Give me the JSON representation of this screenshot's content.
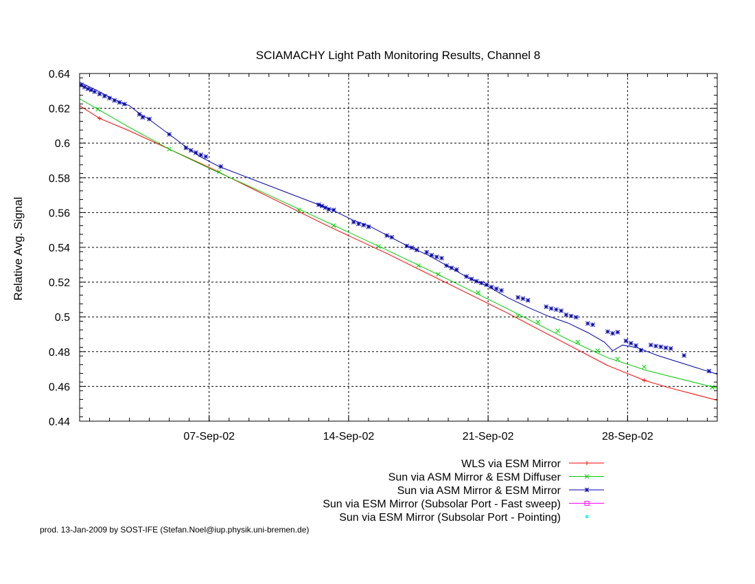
{
  "chart_data": {
    "type": "line",
    "title": "SCIAMACHY Light Path Monitoring Results, Channel 8",
    "xlabel": "",
    "ylabel": "Relative Avg. Signal",
    "x_range": [
      "2002-08-31T12:00",
      "2002-10-02T12:00"
    ],
    "ylim": [
      0.44,
      0.64
    ],
    "yticks": [
      0.44,
      0.46,
      0.48,
      0.5,
      0.52,
      0.54,
      0.56,
      0.58,
      0.6,
      0.62,
      0.64
    ],
    "ytick_labels": [
      "0.44",
      "0.46",
      "0.48",
      "0.5",
      "0.52",
      "0.54",
      "0.56",
      "0.58",
      "0.6",
      "0.62",
      "0.64"
    ],
    "xticks": [
      "2002-09-07",
      "2002-09-14",
      "2002-09-21",
      "2002-09-28"
    ],
    "xtick_labels": [
      "07-Sep-02",
      "14-Sep-02",
      "21-Sep-02",
      "28-Sep-02"
    ],
    "grid": true,
    "legend_position": "below plot, right-aligned labels",
    "series": [
      {
        "name": "WLS via ESM Mirror",
        "color": "#ff0000",
        "marker": "plus",
        "points": [
          [
            "2002-08-31T12:00",
            0.6215
          ],
          [
            "2002-09-01T12:00",
            0.6142
          ],
          [
            "2002-09-03T00:00",
            0.607
          ],
          [
            "2002-09-05T00:00",
            0.5965
          ],
          [
            "2002-09-07T00:00",
            0.586
          ],
          [
            "2002-09-10T00:00",
            0.569
          ],
          [
            "2002-09-13T00:00",
            0.552
          ],
          [
            "2002-09-16T00:00",
            0.536
          ],
          [
            "2002-09-19T00:00",
            0.519
          ],
          [
            "2002-09-22T00:00",
            0.502
          ],
          [
            "2002-09-25T00:00",
            0.484
          ],
          [
            "2002-09-27T00:00",
            0.472
          ],
          [
            "2002-09-28T20:00",
            0.4635
          ],
          [
            "2002-09-30T00:00",
            0.4595
          ],
          [
            "2002-10-02T12:00",
            0.452
          ]
        ],
        "marker_points": [
          [
            "2002-09-01T12:00",
            0.6142
          ],
          [
            "2002-09-28T20:00",
            0.4635
          ]
        ]
      },
      {
        "name": "Sun via ASM Mirror & ESM Diffuser",
        "color": "#00cc00",
        "marker": "cross",
        "points": [
          [
            "2002-08-31T12:00",
            0.6255
          ],
          [
            "2002-09-03T00:00",
            0.609
          ],
          [
            "2002-09-05T00:00",
            0.5965
          ],
          [
            "2002-09-07T00:00",
            0.5855
          ],
          [
            "2002-09-10T00:00",
            0.57
          ],
          [
            "2002-09-13T00:00",
            0.554
          ],
          [
            "2002-09-16T00:00",
            0.538
          ],
          [
            "2002-09-19T00:00",
            0.5215
          ],
          [
            "2002-09-22T00:00",
            0.5045
          ],
          [
            "2002-09-25T00:00",
            0.487
          ],
          [
            "2002-09-27T00:00",
            0.4765
          ],
          [
            "2002-09-29T00:00",
            0.469
          ],
          [
            "2002-10-02T12:00",
            0.459
          ]
        ],
        "marker_points": [
          [
            "2002-09-01T10:00",
            0.6195
          ],
          [
            "2002-09-05T00:00",
            0.5965
          ],
          [
            "2002-09-07T12:00",
            0.5835
          ],
          [
            "2002-09-11T12:00",
            0.5615
          ],
          [
            "2002-09-13T06:00",
            0.5525
          ],
          [
            "2002-09-15T12:00",
            0.5405
          ],
          [
            "2002-09-17T12:00",
            0.5295
          ],
          [
            "2002-09-18T12:00",
            0.5245
          ],
          [
            "2002-09-20T12:00",
            0.514
          ],
          [
            "2002-09-22T12:00",
            0.5005
          ],
          [
            "2002-09-23T12:00",
            0.497
          ],
          [
            "2002-09-24T12:00",
            0.492
          ],
          [
            "2002-09-25T12:00",
            0.4855
          ],
          [
            "2002-09-26T12:00",
            0.4805
          ],
          [
            "2002-09-27T12:00",
            0.4757
          ],
          [
            "2002-09-28T20:00",
            0.4712
          ],
          [
            "2002-10-02T06:00",
            0.4595
          ]
        ]
      },
      {
        "name": "Sun via ASM Mirror & ESM Mirror",
        "color": "#0000aa",
        "marker": "star",
        "points": [
          [
            "2002-08-31T12:00",
            0.635
          ],
          [
            "2002-09-01T00:00",
            0.6323
          ],
          [
            "2002-09-01T12:00",
            0.6295
          ],
          [
            "2002-09-02T00:00",
            0.6265
          ],
          [
            "2002-09-02T12:00",
            0.6235
          ],
          [
            "2002-09-03T00:00",
            0.6215
          ],
          [
            "2002-09-03T12:00",
            0.617
          ],
          [
            "2002-09-04T00:00",
            0.6135
          ],
          [
            "2002-09-05T00:00",
            0.605
          ],
          [
            "2002-09-06T00:00",
            0.5965
          ],
          [
            "2002-09-06T12:00",
            0.5925
          ],
          [
            "2002-09-07T12:00",
            0.5865
          ],
          [
            "2002-09-12T12:00",
            0.5645
          ],
          [
            "2002-09-13T00:00",
            0.5625
          ],
          [
            "2002-09-14T06:00",
            0.5555
          ],
          [
            "2002-09-15T00:00",
            0.5525
          ],
          [
            "2002-09-16T00:00",
            0.5465
          ],
          [
            "2002-09-17T00:00",
            0.5405
          ],
          [
            "2002-09-18T00:00",
            0.5355
          ],
          [
            "2002-09-19T00:00",
            0.529
          ],
          [
            "2002-09-20T00:00",
            0.5225
          ],
          [
            "2002-09-21T00:00",
            0.5175
          ],
          [
            "2002-09-22T00:00",
            0.511
          ],
          [
            "2002-09-23T00:00",
            0.5055
          ],
          [
            "2002-09-24T00:00",
            0.5005
          ],
          [
            "2002-09-25T00:00",
            0.4965
          ],
          [
            "2002-09-26T00:00",
            0.491
          ],
          [
            "2002-09-26T20:00",
            0.4855
          ],
          [
            "2002-09-27T06:00",
            0.4805
          ],
          [
            "2002-09-27T18:00",
            0.4838
          ],
          [
            "2002-09-28T12:00",
            0.4822
          ],
          [
            "2002-09-29T12:00",
            0.4778
          ],
          [
            "2002-10-02T12:00",
            0.467
          ]
        ],
        "marker_points": [
          [
            "2002-08-31T14:00",
            0.6335
          ],
          [
            "2002-08-31T18:00",
            0.6322
          ],
          [
            "2002-08-31T22:00",
            0.6312
          ],
          [
            "2002-09-01T02:00",
            0.6305
          ],
          [
            "2002-09-01T06:00",
            0.6295
          ],
          [
            "2002-09-01T12:00",
            0.6282
          ],
          [
            "2002-09-01T18:00",
            0.627
          ],
          [
            "2002-09-02T00:00",
            0.6258
          ],
          [
            "2002-09-02T06:00",
            0.6245
          ],
          [
            "2002-09-02T12:00",
            0.6234
          ],
          [
            "2002-09-02T18:00",
            0.6224
          ],
          [
            "2002-09-03T12:00",
            0.6165
          ],
          [
            "2002-09-03T16:00",
            0.6148
          ],
          [
            "2002-09-04T00:00",
            0.6138
          ],
          [
            "2002-09-05T00:00",
            0.605
          ],
          [
            "2002-09-05T20:00",
            0.5972
          ],
          [
            "2002-09-06T02:00",
            0.5958
          ],
          [
            "2002-09-06T08:00",
            0.5945
          ],
          [
            "2002-09-06T14:00",
            0.5932
          ],
          [
            "2002-09-06T20:00",
            0.5922
          ],
          [
            "2002-09-07T14:00",
            0.5865
          ],
          [
            "2002-09-12T12:00",
            0.5645
          ],
          [
            "2002-09-12T16:00",
            0.5638
          ],
          [
            "2002-09-12T20:00",
            0.5628
          ],
          [
            "2002-09-13T00:00",
            0.5618
          ],
          [
            "2002-09-13T06:00",
            0.5615
          ],
          [
            "2002-09-14T06:00",
            0.5545
          ],
          [
            "2002-09-14T12:00",
            0.5535
          ],
          [
            "2002-09-14T18:00",
            0.5528
          ],
          [
            "2002-09-15T00:00",
            0.5518
          ],
          [
            "2002-09-15T22:00",
            0.5468
          ],
          [
            "2002-09-16T04:00",
            0.5458
          ],
          [
            "2002-09-16T22:00",
            0.5408
          ],
          [
            "2002-09-17T04:00",
            0.5398
          ],
          [
            "2002-09-17T10:00",
            0.5385
          ],
          [
            "2002-09-17T22:00",
            0.5372
          ],
          [
            "2002-09-18T04:00",
            0.5355
          ],
          [
            "2002-09-18T10:00",
            0.5345
          ],
          [
            "2002-09-18T16:00",
            0.5338
          ],
          [
            "2002-09-18T22:00",
            0.5295
          ],
          [
            "2002-09-19T04:00",
            0.5282
          ],
          [
            "2002-09-19T10:00",
            0.5272
          ],
          [
            "2002-09-19T22:00",
            0.5232
          ],
          [
            "2002-09-20T04:00",
            0.5218
          ],
          [
            "2002-09-20T10:00",
            0.5205
          ],
          [
            "2002-09-20T16:00",
            0.5195
          ],
          [
            "2002-09-20T22:00",
            0.5185
          ],
          [
            "2002-09-21T04:00",
            0.5172
          ],
          [
            "2002-09-21T10:00",
            0.5162
          ],
          [
            "2002-09-21T16:00",
            0.5152
          ],
          [
            "2002-09-22T12:00",
            0.5112
          ],
          [
            "2002-09-22T18:00",
            0.5105
          ],
          [
            "2002-09-23T00:00",
            0.5095
          ],
          [
            "2002-09-23T22:00",
            0.5058
          ],
          [
            "2002-09-24T04:00",
            0.5048
          ],
          [
            "2002-09-24T10:00",
            0.5042
          ],
          [
            "2002-09-24T16:00",
            0.5035
          ],
          [
            "2002-09-24T22:00",
            0.5012
          ],
          [
            "2002-09-25T04:00",
            0.5005
          ],
          [
            "2002-09-25T10:00",
            0.4998
          ],
          [
            "2002-09-26T00:00",
            0.4962
          ],
          [
            "2002-09-26T06:00",
            0.4955
          ],
          [
            "2002-09-27T00:00",
            0.4915
          ],
          [
            "2002-09-27T06:00",
            0.4905
          ],
          [
            "2002-09-27T12:00",
            0.4912
          ],
          [
            "2002-09-27T22:00",
            0.4862
          ],
          [
            "2002-09-28T04:00",
            0.4848
          ],
          [
            "2002-09-28T10:00",
            0.4835
          ],
          [
            "2002-09-28T16:00",
            0.4808
          ],
          [
            "2002-09-29T04:00",
            0.4838
          ],
          [
            "2002-09-29T10:00",
            0.4832
          ],
          [
            "2002-09-29T16:00",
            0.4828
          ],
          [
            "2002-09-29T22:00",
            0.4822
          ],
          [
            "2002-09-30T04:00",
            0.4818
          ],
          [
            "2002-09-30T20:00",
            0.4778
          ],
          [
            "2002-10-02T02:00",
            0.4688
          ]
        ]
      },
      {
        "name": "Sun via ESM Mirror (Subsolar Port - Fast sweep)",
        "color": "#ff00ff",
        "marker": "square",
        "points": [],
        "marker_points": []
      },
      {
        "name": "Sun via ESM Mirror (Subsolar Port - Pointing)",
        "color": "#00ffff",
        "marker": "filled-square",
        "points": [],
        "marker_points": []
      }
    ]
  },
  "footer": {
    "text": "prod. 13-Jan-2009 by SOST-IFE (Stefan.Noel@iup.physik.uni-bremen.de)"
  }
}
